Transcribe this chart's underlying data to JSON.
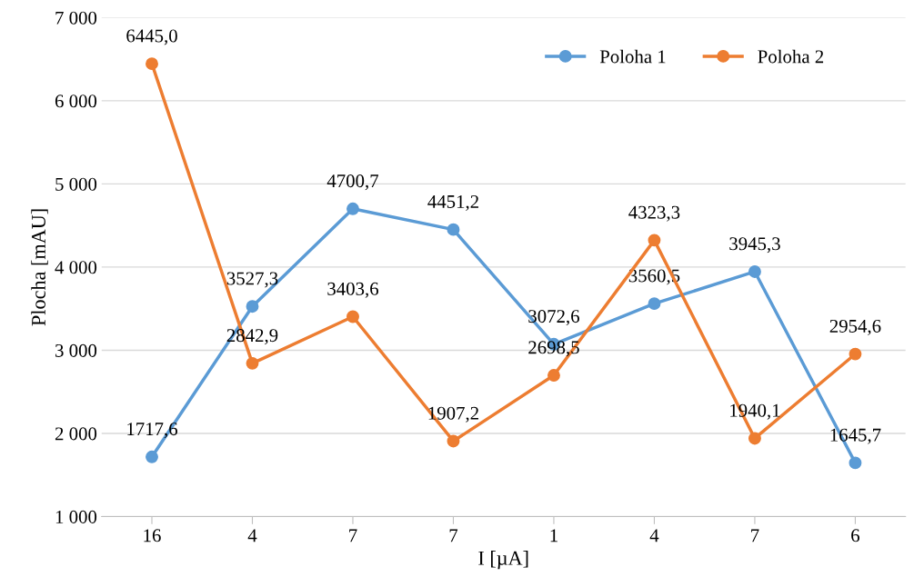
{
  "chart_data": {
    "type": "line",
    "xlabel": "I [µA]",
    "ylabel": "Plocha [mAU]",
    "categories": [
      "16",
      "4",
      "7",
      "7",
      "1",
      "4",
      "7",
      "6"
    ],
    "series": [
      {
        "name": "Poloha 1",
        "color": "#5b9bd5",
        "values": [
          1717.6,
          3527.3,
          4700.7,
          4451.2,
          3072.6,
          3560.5,
          3945.3,
          1645.7
        ],
        "value_labels": [
          "1717,6",
          "3527,3",
          "4700,7",
          "4451,2",
          "3072,6",
          "3560,5",
          "3945,3",
          "1645,7"
        ]
      },
      {
        "name": "Poloha 2",
        "color": "#ed7d31",
        "values": [
          6445.0,
          2842.9,
          3403.6,
          1907.2,
          2698.5,
          4323.3,
          1940.1,
          2954.6
        ],
        "value_labels": [
          "6445,0",
          "2842,9",
          "3403,6",
          "1907,2",
          "2698,5",
          "4323,3",
          "1940,1",
          "2954,6"
        ]
      }
    ],
    "ylim": [
      1000,
      7000
    ],
    "yticks": [
      {
        "value": 1000,
        "label": "1 000"
      },
      {
        "value": 2000,
        "label": "2 000"
      },
      {
        "value": 3000,
        "label": "3 000"
      },
      {
        "value": 4000,
        "label": "4 000"
      },
      {
        "value": 5000,
        "label": "5 000"
      },
      {
        "value": 6000,
        "label": "6 000"
      },
      {
        "value": 7000,
        "label": "7 000"
      }
    ],
    "grid": "y",
    "legend": "top right",
    "marker": "circle",
    "line_style": "solid"
  }
}
